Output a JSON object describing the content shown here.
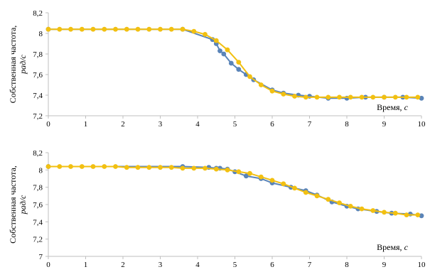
{
  "colors": {
    "series_blue": "#5a84b8",
    "series_yellow": "#f2c011",
    "axis": "#bfbfbf",
    "grid": "#d9d9d9"
  },
  "chart_data": [
    {
      "type": "line",
      "ylabel": {
        "line1": "Собственная частота,",
        "line2": "рад/с"
      },
      "xlabel": {
        "text": "Время, ",
        "unit": "с"
      },
      "xlim": [
        0,
        10
      ],
      "ylim": [
        7.2,
        8.2
      ],
      "x_ticks": [
        "0",
        "1",
        "2",
        "3",
        "4",
        "5",
        "6",
        "7",
        "8",
        "9",
        "10"
      ],
      "y_ticks": [
        "7,2",
        "7,4",
        "7,6",
        "7,8",
        "8",
        "8,2"
      ],
      "grid": "horizontal-only-none",
      "series": [
        {
          "color": "#5a84b8",
          "points": [
            [
              0,
              8.04
            ],
            [
              3.6,
              8.04
            ],
            [
              4.4,
              7.94
            ],
            [
              4.5,
              7.9
            ],
            [
              4.6,
              7.83
            ],
            [
              4.7,
              7.8
            ],
            [
              4.9,
              7.71
            ],
            [
              5.1,
              7.65
            ],
            [
              5.3,
              7.6
            ],
            [
              5.5,
              7.55
            ],
            [
              6.0,
              7.45
            ],
            [
              6.3,
              7.42
            ],
            [
              6.7,
              7.4
            ],
            [
              7.0,
              7.39
            ],
            [
              7.5,
              7.37
            ],
            [
              8.0,
              7.37
            ],
            [
              8.5,
              7.38
            ],
            [
              9.0,
              7.38
            ],
            [
              9.5,
              7.38
            ],
            [
              10.0,
              7.37
            ]
          ]
        },
        {
          "color": "#f2c011",
          "points": [
            [
              0,
              8.04
            ],
            [
              0.3,
              8.04
            ],
            [
              0.6,
              8.04
            ],
            [
              0.9,
              8.04
            ],
            [
              1.2,
              8.04
            ],
            [
              1.5,
              8.04
            ],
            [
              1.8,
              8.04
            ],
            [
              2.1,
              8.04
            ],
            [
              2.4,
              8.04
            ],
            [
              2.7,
              8.04
            ],
            [
              3.0,
              8.04
            ],
            [
              3.3,
              8.04
            ],
            [
              3.6,
              8.04
            ],
            [
              3.9,
              8.02
            ],
            [
              4.2,
              7.99
            ],
            [
              4.5,
              7.93
            ],
            [
              4.8,
              7.84
            ],
            [
              5.1,
              7.72
            ],
            [
              5.4,
              7.58
            ],
            [
              5.7,
              7.5
            ],
            [
              6.0,
              7.44
            ],
            [
              6.3,
              7.41
            ],
            [
              6.6,
              7.39
            ],
            [
              6.9,
              7.38
            ],
            [
              7.2,
              7.38
            ],
            [
              7.5,
              7.38
            ],
            [
              7.8,
              7.38
            ],
            [
              8.1,
              7.38
            ],
            [
              8.4,
              7.38
            ],
            [
              8.7,
              7.38
            ],
            [
              9.0,
              7.38
            ],
            [
              9.3,
              7.38
            ],
            [
              9.6,
              7.38
            ],
            [
              9.9,
              7.38
            ]
          ]
        }
      ]
    },
    {
      "type": "line",
      "ylabel": {
        "line1": "Собственная частота,",
        "line2": "рад/с"
      },
      "xlabel": {
        "text": "Время, ",
        "unit": "с"
      },
      "xlim": [
        0,
        10
      ],
      "ylim": [
        7.0,
        8.2
      ],
      "x_ticks": [
        "0",
        "1",
        "2",
        "3",
        "4",
        "5",
        "6",
        "7",
        "8",
        "9",
        "10"
      ],
      "y_ticks": [
        "7",
        "7,2",
        "7,4",
        "7,6",
        "7,8",
        "8",
        "8,2"
      ],
      "series": [
        {
          "color": "#5a84b8",
          "points": [
            [
              0,
              8.04
            ],
            [
              3.6,
              8.04
            ],
            [
              4.3,
              8.03
            ],
            [
              4.5,
              8.02
            ],
            [
              4.6,
              8.02
            ],
            [
              4.8,
              8.01
            ],
            [
              5.0,
              7.98
            ],
            [
              5.3,
              7.93
            ],
            [
              5.7,
              7.9
            ],
            [
              6.0,
              7.85
            ],
            [
              6.5,
              7.8
            ],
            [
              6.9,
              7.76
            ],
            [
              7.2,
              7.71
            ],
            [
              7.6,
              7.63
            ],
            [
              8.0,
              7.58
            ],
            [
              8.3,
              7.55
            ],
            [
              8.8,
              7.52
            ],
            [
              9.2,
              7.5
            ],
            [
              9.7,
              7.49
            ],
            [
              10.0,
              7.47
            ]
          ]
        },
        {
          "color": "#f2c011",
          "points": [
            [
              0,
              8.04
            ],
            [
              0.3,
              8.04
            ],
            [
              0.6,
              8.04
            ],
            [
              0.9,
              8.04
            ],
            [
              1.2,
              8.04
            ],
            [
              1.5,
              8.04
            ],
            [
              1.8,
              8.04
            ],
            [
              2.1,
              8.03
            ],
            [
              2.4,
              8.03
            ],
            [
              2.7,
              8.03
            ],
            [
              3.0,
              8.03
            ],
            [
              3.3,
              8.03
            ],
            [
              3.6,
              8.02
            ],
            [
              3.9,
              8.02
            ],
            [
              4.2,
              8.02
            ],
            [
              4.5,
              8.01
            ],
            [
              4.8,
              8.0
            ],
            [
              5.1,
              7.98
            ],
            [
              5.4,
              7.96
            ],
            [
              5.7,
              7.92
            ],
            [
              6.0,
              7.88
            ],
            [
              6.3,
              7.84
            ],
            [
              6.6,
              7.79
            ],
            [
              6.9,
              7.74
            ],
            [
              7.2,
              7.7
            ],
            [
              7.5,
              7.66
            ],
            [
              7.8,
              7.62
            ],
            [
              8.1,
              7.58
            ],
            [
              8.4,
              7.55
            ],
            [
              8.7,
              7.53
            ],
            [
              9.0,
              7.51
            ],
            [
              9.3,
              7.5
            ],
            [
              9.6,
              7.48
            ],
            [
              9.9,
              7.48
            ]
          ]
        }
      ]
    }
  ]
}
